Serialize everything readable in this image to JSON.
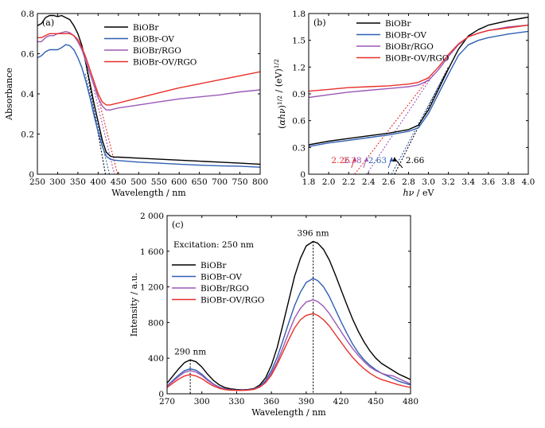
{
  "colors": {
    "BiOBr": "#000000",
    "BiOBr-OV": "#2f5fb3",
    "BiOBr/RGO": "#9b59b6",
    "BiOBr-OV/RGO": "#e8302a"
  },
  "chart_data": [
    {
      "id": "a",
      "type": "line",
      "panel_label": "(a)",
      "xlabel": "Wavelength / nm",
      "ylabel": "Absorbance",
      "xlim": [
        250,
        800
      ],
      "ylim": [
        0,
        0.8
      ],
      "xticks": [
        "250",
        "300",
        "350",
        "400",
        "450",
        "500",
        "550",
        "600",
        "650",
        "700",
        "750",
        "800"
      ],
      "yticks": [
        "0",
        "0.2",
        "0.4",
        "0.6",
        "0.8"
      ],
      "legend": [
        "BiOBr",
        "BiOBr-OV",
        "BiOBr/RGO",
        "BiOBr-OV/RGO"
      ],
      "legend_position": "top-right",
      "series": [
        {
          "name": "BiOBr",
          "x": [
            250,
            260,
            270,
            280,
            290,
            300,
            310,
            320,
            330,
            340,
            350,
            360,
            370,
            380,
            390,
            400,
            410,
            420,
            430,
            440,
            450,
            500,
            550,
            600,
            650,
            700,
            750,
            800
          ],
          "y": [
            0.74,
            0.75,
            0.78,
            0.79,
            0.79,
            0.785,
            0.79,
            0.78,
            0.77,
            0.74,
            0.7,
            0.64,
            0.55,
            0.45,
            0.35,
            0.26,
            0.17,
            0.11,
            0.09,
            0.085,
            0.085,
            0.08,
            0.075,
            0.07,
            0.065,
            0.06,
            0.055,
            0.05
          ]
        },
        {
          "name": "BiOBr-OV",
          "x": [
            250,
            260,
            270,
            280,
            290,
            300,
            310,
            320,
            330,
            340,
            350,
            360,
            370,
            380,
            390,
            400,
            410,
            420,
            430,
            440,
            450,
            500,
            550,
            600,
            650,
            700,
            750,
            800
          ],
          "y": [
            0.58,
            0.59,
            0.61,
            0.62,
            0.62,
            0.62,
            0.63,
            0.645,
            0.64,
            0.62,
            0.58,
            0.53,
            0.46,
            0.38,
            0.29,
            0.21,
            0.14,
            0.09,
            0.075,
            0.07,
            0.068,
            0.06,
            0.055,
            0.05,
            0.045,
            0.042,
            0.04,
            0.035
          ]
        },
        {
          "name": "BiOBr/RGO",
          "x": [
            250,
            260,
            270,
            280,
            290,
            300,
            310,
            320,
            330,
            340,
            350,
            360,
            370,
            380,
            390,
            400,
            410,
            420,
            430,
            440,
            450,
            500,
            550,
            600,
            650,
            700,
            750,
            800
          ],
          "y": [
            0.66,
            0.66,
            0.68,
            0.69,
            0.69,
            0.7,
            0.705,
            0.71,
            0.705,
            0.69,
            0.66,
            0.62,
            0.56,
            0.5,
            0.44,
            0.38,
            0.34,
            0.32,
            0.32,
            0.325,
            0.33,
            0.345,
            0.36,
            0.375,
            0.385,
            0.395,
            0.41,
            0.42
          ]
        },
        {
          "name": "BiOBr-OV/RGO",
          "x": [
            250,
            260,
            270,
            280,
            290,
            300,
            310,
            320,
            330,
            340,
            350,
            360,
            370,
            380,
            390,
            400,
            410,
            420,
            430,
            440,
            450,
            500,
            550,
            600,
            650,
            700,
            750,
            800
          ],
          "y": [
            0.68,
            0.68,
            0.69,
            0.7,
            0.7,
            0.7,
            0.7,
            0.7,
            0.7,
            0.69,
            0.67,
            0.63,
            0.58,
            0.52,
            0.46,
            0.4,
            0.36,
            0.345,
            0.345,
            0.35,
            0.355,
            0.38,
            0.405,
            0.43,
            0.45,
            0.47,
            0.49,
            0.51
          ]
        }
      ],
      "tangents": [
        {
          "name": "BiOBr",
          "from": [
            365,
            0.6
          ],
          "to": [
            418,
            0
          ]
        },
        {
          "name": "BiOBr-OV",
          "from": [
            368,
            0.5
          ],
          "to": [
            428,
            0
          ]
        },
        {
          "name": "BiOBr/RGO",
          "from": [
            390,
            0.42
          ],
          "to": [
            440,
            0
          ]
        },
        {
          "name": "BiOBr-OV/RGO",
          "from": [
            393,
            0.44
          ],
          "to": [
            448,
            0
          ]
        }
      ]
    },
    {
      "id": "b",
      "type": "line",
      "panel_label": "(b)",
      "xlabel": "hν / eV",
      "ylabel": "(αhν)1/2 / (eV)1/2",
      "xlim": [
        1.8,
        4.0
      ],
      "ylim": [
        0,
        1.8
      ],
      "xticks": [
        "1.8",
        "2.0",
        "2.2",
        "2.4",
        "2.6",
        "2.8",
        "3.0",
        "3.2",
        "3.4",
        "3.6",
        "3.8",
        "4.0"
      ],
      "yticks": [
        "0",
        "0.3",
        "0.6",
        "0.9",
        "1.2",
        "1.5",
        "1.8"
      ],
      "legend": [
        "BiOBr",
        "BiOBr-OV",
        "BiOBr/RGO",
        "BiOBr-OV/RGO"
      ],
      "legend_position": "top-left",
      "series": [
        {
          "name": "BiOBr",
          "x": [
            1.8,
            2.0,
            2.2,
            2.4,
            2.6,
            2.8,
            2.9,
            3.0,
            3.1,
            3.2,
            3.3,
            3.4,
            3.5,
            3.6,
            3.8,
            4.0
          ],
          "y": [
            0.33,
            0.37,
            0.4,
            0.43,
            0.46,
            0.5,
            0.55,
            0.72,
            0.95,
            1.18,
            1.4,
            1.55,
            1.62,
            1.67,
            1.72,
            1.76
          ]
        },
        {
          "name": "BiOBr-OV",
          "x": [
            1.8,
            2.0,
            2.2,
            2.4,
            2.6,
            2.8,
            2.9,
            3.0,
            3.1,
            3.2,
            3.3,
            3.4,
            3.5,
            3.6,
            3.8,
            4.0
          ],
          "y": [
            0.31,
            0.35,
            0.38,
            0.41,
            0.44,
            0.48,
            0.52,
            0.68,
            0.9,
            1.12,
            1.33,
            1.45,
            1.5,
            1.53,
            1.57,
            1.6
          ]
        },
        {
          "name": "BiOBr/RGO",
          "x": [
            1.8,
            2.0,
            2.2,
            2.4,
            2.6,
            2.8,
            2.9,
            3.0,
            3.1,
            3.2,
            3.3,
            3.4,
            3.5,
            3.6,
            3.8,
            4.0
          ],
          "y": [
            0.86,
            0.89,
            0.92,
            0.94,
            0.96,
            0.98,
            1.0,
            1.05,
            1.17,
            1.32,
            1.45,
            1.54,
            1.58,
            1.61,
            1.65,
            1.67
          ]
        },
        {
          "name": "BiOBr-OV/RGO",
          "x": [
            1.8,
            2.0,
            2.2,
            2.4,
            2.6,
            2.8,
            2.9,
            3.0,
            3.1,
            3.2,
            3.3,
            3.4,
            3.5,
            3.6,
            3.8,
            4.0
          ],
          "y": [
            0.93,
            0.95,
            0.97,
            0.98,
            0.99,
            1.01,
            1.03,
            1.08,
            1.2,
            1.34,
            1.46,
            1.54,
            1.58,
            1.61,
            1.64,
            1.67
          ]
        }
      ],
      "tangents": [
        {
          "name": "BiOBr",
          "from": [
            2.66,
            0
          ],
          "to": [
            3.2,
            1.2
          ]
        },
        {
          "name": "BiOBr-OV",
          "from": [
            2.63,
            0
          ],
          "to": [
            3.18,
            1.15
          ]
        },
        {
          "name": "BiOBr/RGO",
          "from": [
            2.38,
            0
          ],
          "to": [
            3.05,
            1.12
          ]
        },
        {
          "name": "BiOBr-OV/RGO",
          "from": [
            2.26,
            0
          ],
          "to": [
            3.02,
            1.1
          ]
        }
      ],
      "annotations": [
        {
          "text": "2.26",
          "series": "BiOBr-OV/RGO",
          "x": 2.26
        },
        {
          "text": "2.38",
          "series": "BiOBr/RGO",
          "x": 2.38
        },
        {
          "text": "2.63",
          "series": "BiOBr-OV",
          "x": 2.63
        },
        {
          "text": "2.66",
          "series": "BiOBr",
          "x": 2.66
        }
      ]
    },
    {
      "id": "c",
      "type": "line",
      "panel_label": "(c)",
      "xlabel": "Wavelength / nm",
      "ylabel": "Intensity / a.u.",
      "xlim": [
        270,
        480
      ],
      "ylim": [
        0,
        2000
      ],
      "xticks": [
        "270",
        "300",
        "330",
        "360",
        "390",
        "420",
        "450",
        "480"
      ],
      "yticks": [
        "0",
        "400",
        "800",
        "1 200",
        "1 600",
        "2 000"
      ],
      "legend_title": "Excitation: 250 nm",
      "legend": [
        "BiOBr",
        "BiOBr-OV",
        "BiOBr/RGO",
        "BiOBr-OV/RGO"
      ],
      "legend_position": "top-left",
      "peak_labels": [
        {
          "text": "290 nm",
          "x": 290
        },
        {
          "text": "396 nm",
          "x": 396
        }
      ],
      "series": [
        {
          "name": "BiOBr",
          "x": [
            270,
            275,
            280,
            285,
            290,
            295,
            300,
            305,
            310,
            315,
            320,
            325,
            330,
            335,
            340,
            345,
            350,
            355,
            360,
            365,
            370,
            375,
            380,
            385,
            390,
            396,
            400,
            405,
            410,
            415,
            420,
            425,
            430,
            435,
            440,
            445,
            450,
            455,
            460,
            465,
            470,
            475,
            480
          ],
          "y": [
            120,
            200,
            280,
            350,
            380,
            360,
            300,
            220,
            150,
            100,
            70,
            55,
            48,
            45,
            48,
            60,
            100,
            180,
            320,
            520,
            780,
            1050,
            1320,
            1520,
            1660,
            1710,
            1690,
            1620,
            1500,
            1340,
            1170,
            1000,
            840,
            700,
            580,
            480,
            400,
            340,
            300,
            260,
            220,
            190,
            160
          ]
        },
        {
          "name": "BiOBr-OV",
          "x": [
            270,
            275,
            280,
            285,
            290,
            295,
            300,
            305,
            310,
            315,
            320,
            325,
            330,
            335,
            340,
            345,
            350,
            355,
            360,
            365,
            370,
            375,
            380,
            385,
            390,
            396,
            400,
            405,
            410,
            415,
            420,
            425,
            430,
            435,
            440,
            445,
            450,
            455,
            460,
            465,
            470,
            475,
            480
          ],
          "y": [
            90,
            150,
            210,
            260,
            280,
            265,
            220,
            160,
            110,
            75,
            55,
            45,
            42,
            42,
            45,
            55,
            85,
            150,
            260,
            410,
            600,
            800,
            990,
            1140,
            1250,
            1295,
            1270,
            1200,
            1090,
            950,
            810,
            680,
            560,
            460,
            380,
            320,
            270,
            230,
            200,
            170,
            140,
            120,
            100
          ]
        },
        {
          "name": "BiOBr/RGO",
          "x": [
            270,
            275,
            280,
            285,
            290,
            295,
            300,
            305,
            310,
            315,
            320,
            325,
            330,
            335,
            340,
            345,
            350,
            355,
            360,
            365,
            370,
            375,
            380,
            385,
            390,
            396,
            400,
            405,
            410,
            415,
            420,
            425,
            430,
            435,
            440,
            445,
            450,
            455,
            460,
            465,
            470,
            475,
            480
          ],
          "y": [
            85,
            140,
            195,
            240,
            260,
            245,
            205,
            150,
            105,
            72,
            52,
            44,
            40,
            40,
            43,
            52,
            80,
            135,
            230,
            360,
            520,
            690,
            850,
            960,
            1030,
            1055,
            1035,
            980,
            900,
            800,
            700,
            600,
            510,
            430,
            360,
            300,
            260,
            230,
            210,
            200,
            170,
            140,
            110
          ]
        },
        {
          "name": "BiOBr-OV/RGO",
          "x": [
            270,
            275,
            280,
            285,
            290,
            295,
            300,
            305,
            310,
            315,
            320,
            325,
            330,
            335,
            340,
            345,
            350,
            355,
            360,
            365,
            370,
            375,
            380,
            385,
            390,
            396,
            400,
            405,
            410,
            415,
            420,
            425,
            430,
            435,
            440,
            445,
            450,
            455,
            460,
            465,
            470,
            475,
            480
          ],
          "y": [
            70,
            120,
            165,
            200,
            215,
            200,
            170,
            125,
            88,
            62,
            46,
            40,
            38,
            38,
            41,
            50,
            75,
            125,
            210,
            330,
            470,
            610,
            740,
            830,
            880,
            900,
            880,
            830,
            760,
            670,
            580,
            490,
            410,
            340,
            280,
            230,
            190,
            160,
            140,
            120,
            100,
            85,
            70
          ]
        }
      ]
    }
  ]
}
